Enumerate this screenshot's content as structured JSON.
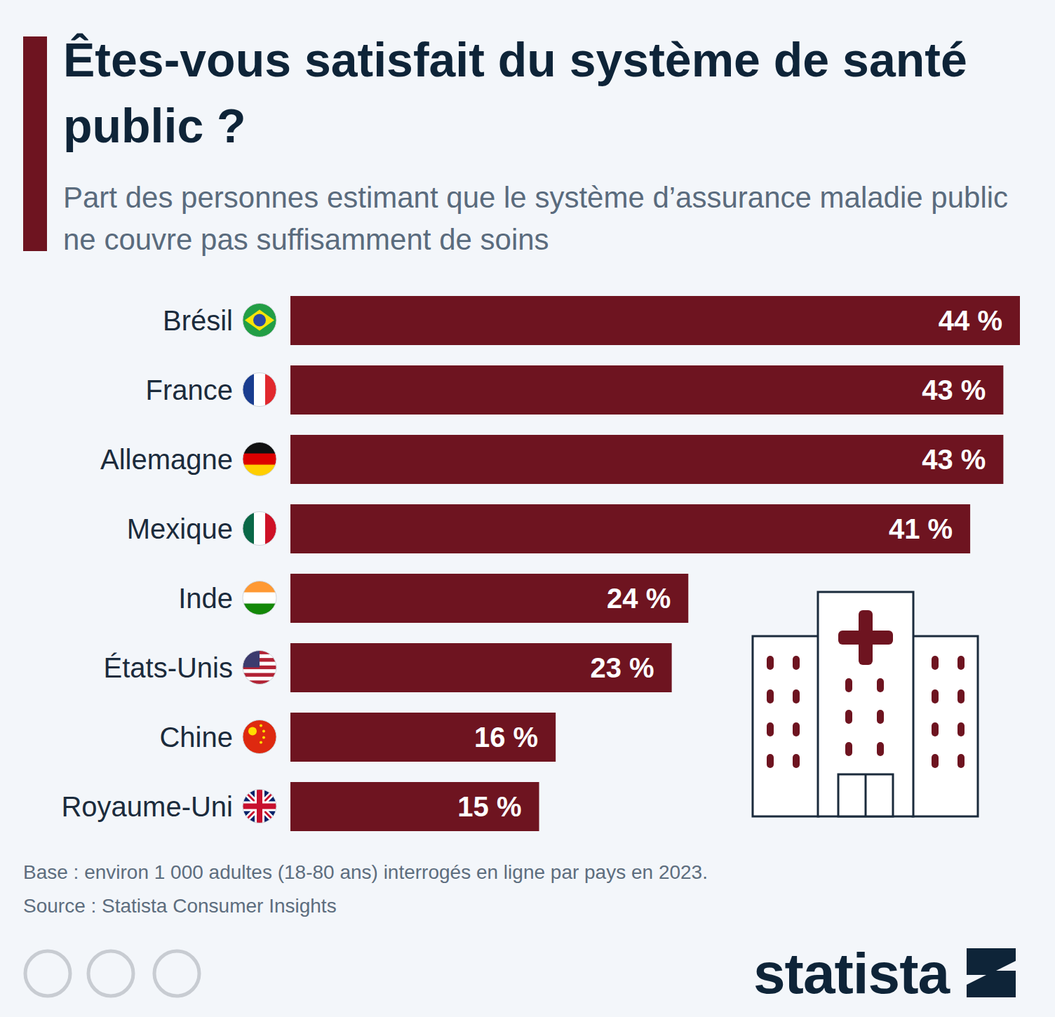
{
  "chart_data": {
    "type": "bar",
    "title": "Êtes-vous satisfait du système de santé public ?",
    "subtitle": "Part des personnes estimant que le système d’assurance maladie public ne couvre pas suffisamment de soins",
    "categories": [
      "Brésil",
      "France",
      "Allemagne",
      "Mexique",
      "Inde",
      "États-Unis",
      "Chine",
      "Royaume-Uni"
    ],
    "values": [
      44,
      43,
      43,
      41,
      24,
      23,
      16,
      15
    ],
    "value_labels": [
      "44 %",
      "43 %",
      "43 %",
      "41 %",
      "24 %",
      "23 %",
      "16 %",
      "15 %"
    ],
    "color": "#6e1420",
    "orientation": "horizontal",
    "xlim": [
      0,
      44
    ],
    "data_labels": true,
    "tick_labels": "y",
    "grid": false,
    "footnotes": [
      "Base : environ 1 000 adultes (18-80 ans) interrogés en ligne par pays en 2023.",
      "Source : Statista Consumer Insights"
    ],
    "brand": "statista"
  }
}
